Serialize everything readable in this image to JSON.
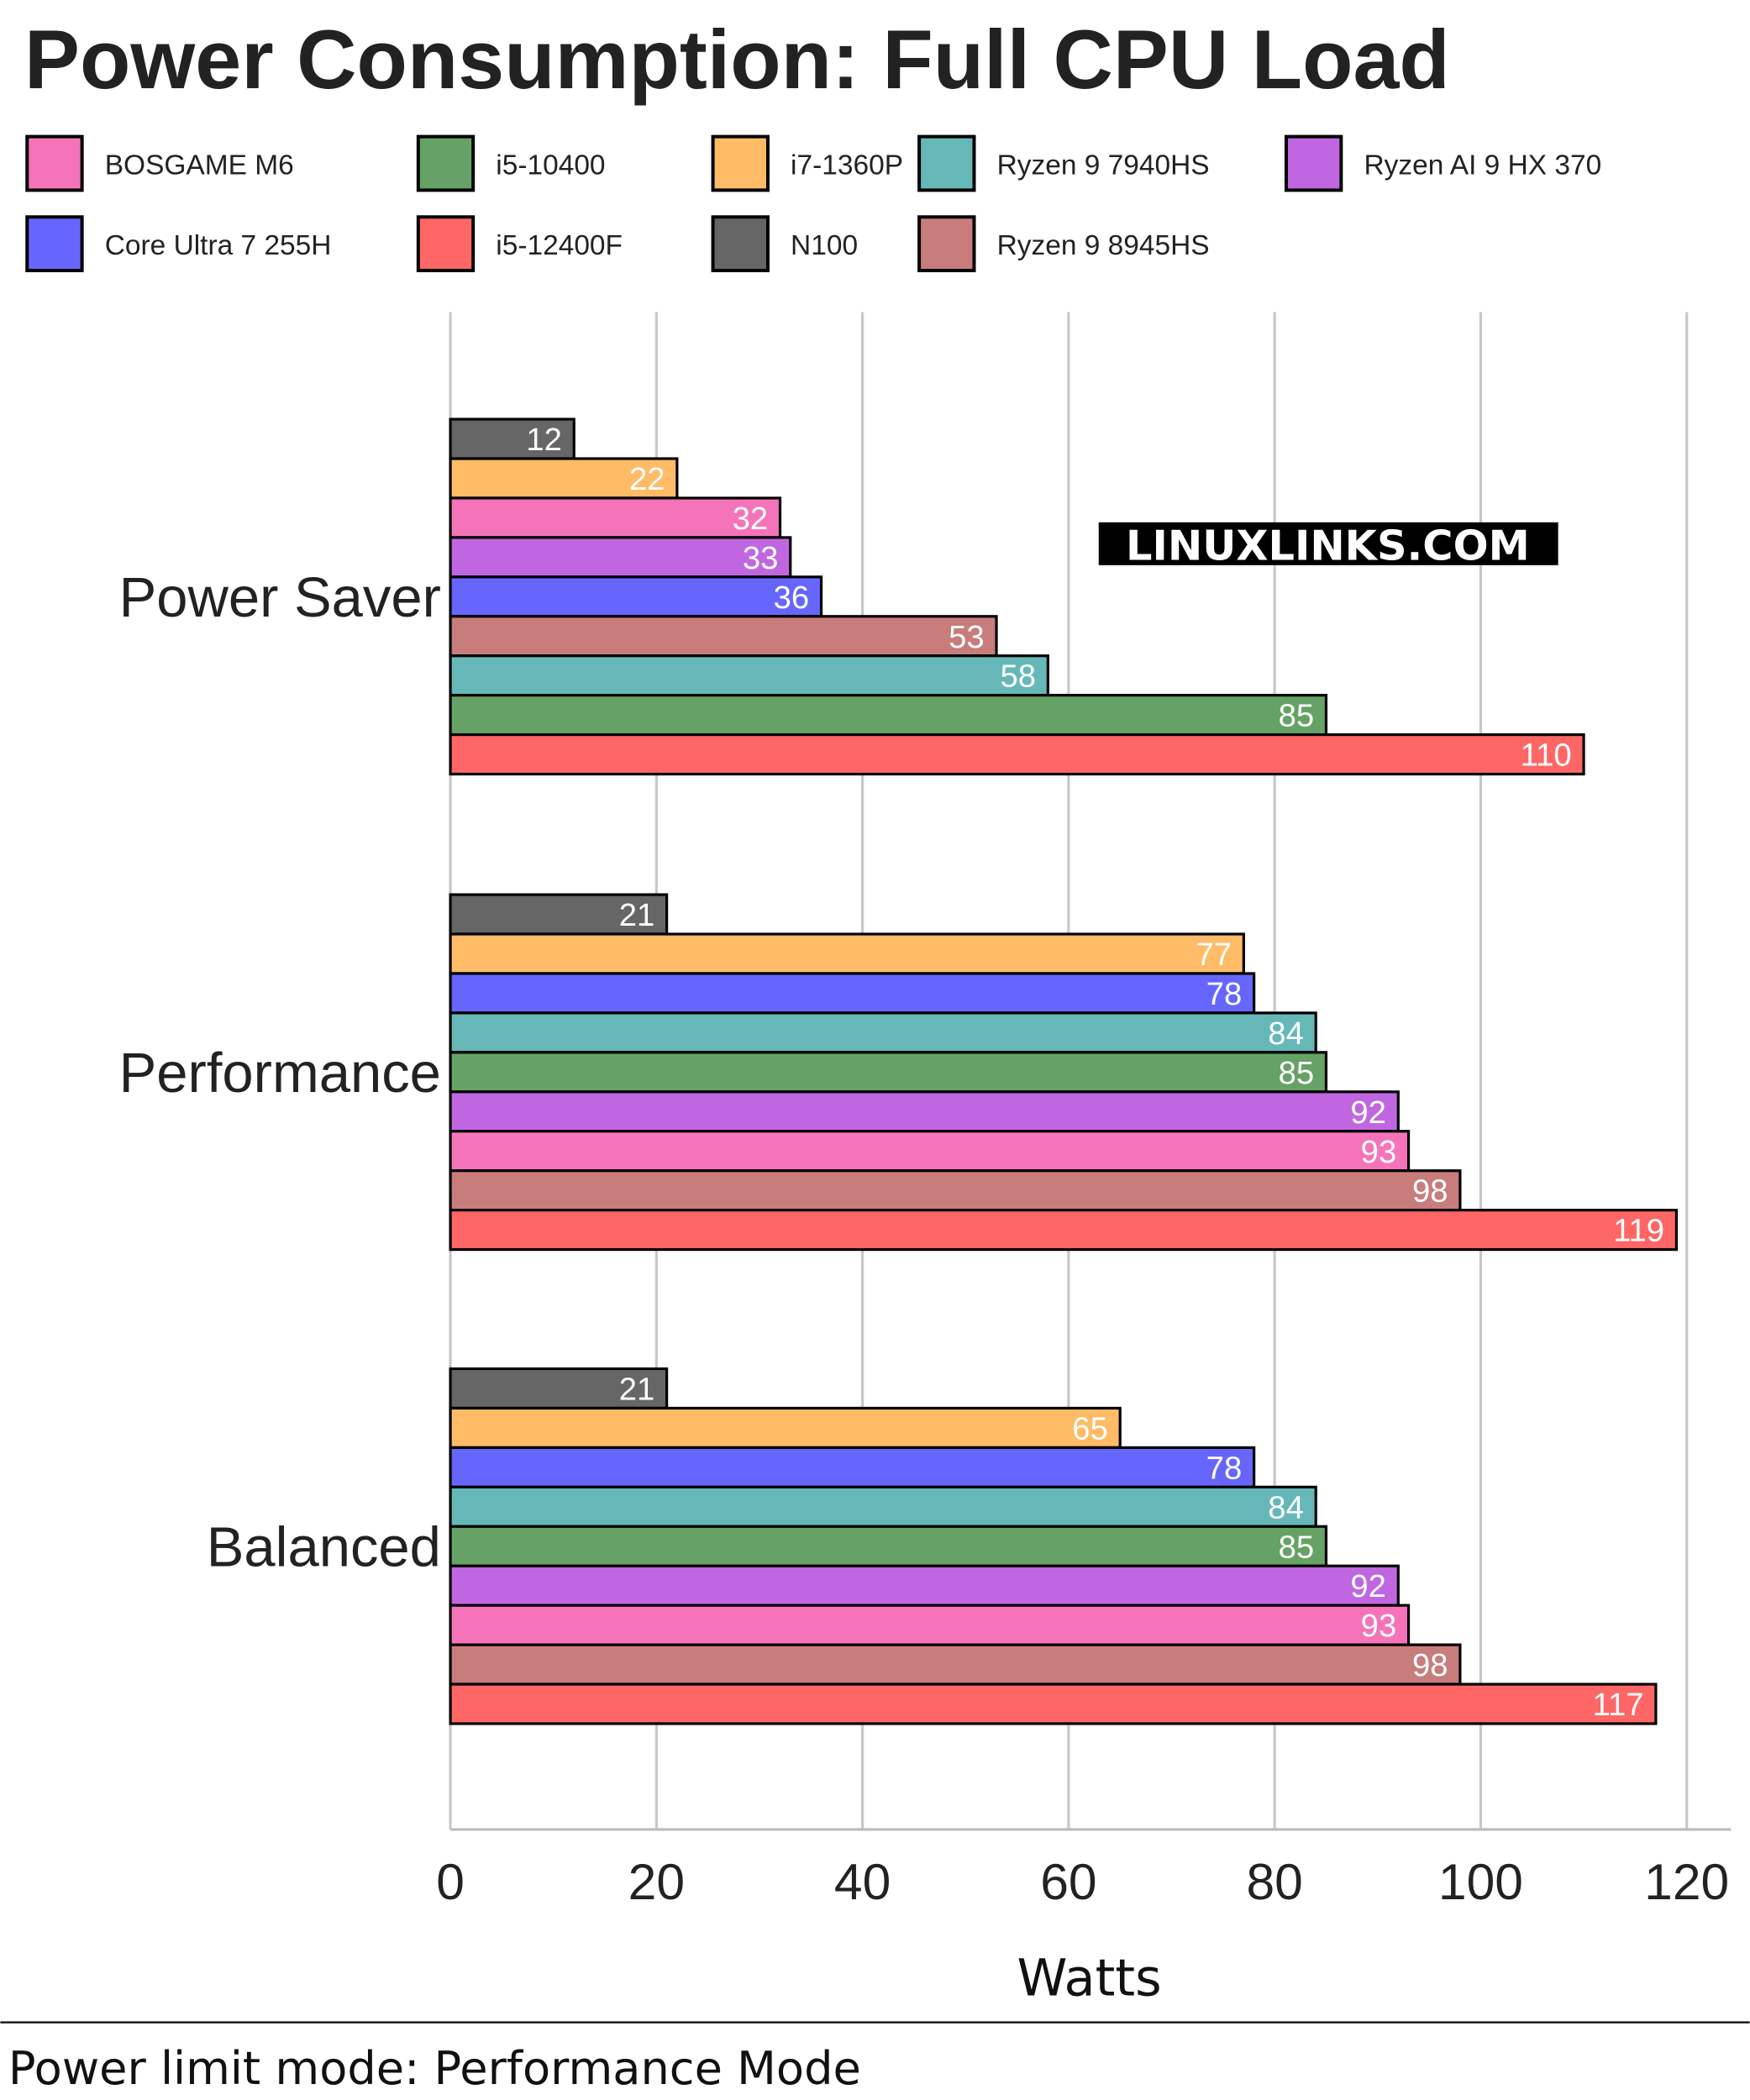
{
  "chart_data": {
    "type": "bar",
    "orientation": "horizontal",
    "title": "Power Consumption: Full CPU Load",
    "xlabel": "Watts",
    "ylabel": "",
    "xlim": [
      0,
      123
    ],
    "xticks": [
      0,
      20,
      40,
      60,
      80,
      100,
      120
    ],
    "grid": "vertical",
    "legend_placement": "top",
    "footer": "Power limit mode: Performance Mode",
    "watermark": "LINUXLINKS.COM",
    "legend": [
      {
        "name": "BOSGAME M6",
        "color": "#f574b9"
      },
      {
        "name": "i5-10400",
        "color": "#66a266"
      },
      {
        "name": "i7-1360P",
        "color": "#ffbb66"
      },
      {
        "name": "Ryzen 9 7940HS",
        "color": "#66b8b8"
      },
      {
        "name": "Ryzen AI 9 HX 370",
        "color": "#c066e0"
      },
      {
        "name": "Core Ultra 7 255H",
        "color": "#6666ff"
      },
      {
        "name": "i5-12400F",
        "color": "#ff6666"
      },
      {
        "name": "N100",
        "color": "#666666"
      },
      {
        "name": "Ryzen 9 8945HS",
        "color": "#c87c7c"
      }
    ],
    "groups": [
      {
        "category": "Power Saver",
        "bars": [
          {
            "series": "N100",
            "value": 12
          },
          {
            "series": "i7-1360P",
            "value": 22
          },
          {
            "series": "BOSGAME M6",
            "value": 32
          },
          {
            "series": "Ryzen AI 9 HX 370",
            "value": 33
          },
          {
            "series": "Core Ultra 7 255H",
            "value": 36
          },
          {
            "series": "Ryzen 9 8945HS",
            "value": 53
          },
          {
            "series": "Ryzen 9 7940HS",
            "value": 58
          },
          {
            "series": "i5-10400",
            "value": 85
          },
          {
            "series": "i5-12400F",
            "value": 110
          }
        ]
      },
      {
        "category": "Performance",
        "bars": [
          {
            "series": "N100",
            "value": 21
          },
          {
            "series": "i7-1360P",
            "value": 77
          },
          {
            "series": "Core Ultra 7 255H",
            "value": 78
          },
          {
            "series": "Ryzen 9 7940HS",
            "value": 84
          },
          {
            "series": "i5-10400",
            "value": 85
          },
          {
            "series": "Ryzen AI 9 HX 370",
            "value": 92
          },
          {
            "series": "BOSGAME M6",
            "value": 93
          },
          {
            "series": "Ryzen 9 8945HS",
            "value": 98
          },
          {
            "series": "i5-12400F",
            "value": 119
          }
        ]
      },
      {
        "category": "Balanced",
        "bars": [
          {
            "series": "N100",
            "value": 21
          },
          {
            "series": "i7-1360P",
            "value": 65
          },
          {
            "series": "Core Ultra 7 255H",
            "value": 78
          },
          {
            "series": "Ryzen 9 7940HS",
            "value": 84
          },
          {
            "series": "i5-10400",
            "value": 85
          },
          {
            "series": "Ryzen AI 9 HX 370",
            "value": 92
          },
          {
            "series": "BOSGAME M6",
            "value": 93
          },
          {
            "series": "Ryzen 9 8945HS",
            "value": 98
          },
          {
            "series": "i5-12400F",
            "value": 117
          }
        ]
      }
    ]
  }
}
